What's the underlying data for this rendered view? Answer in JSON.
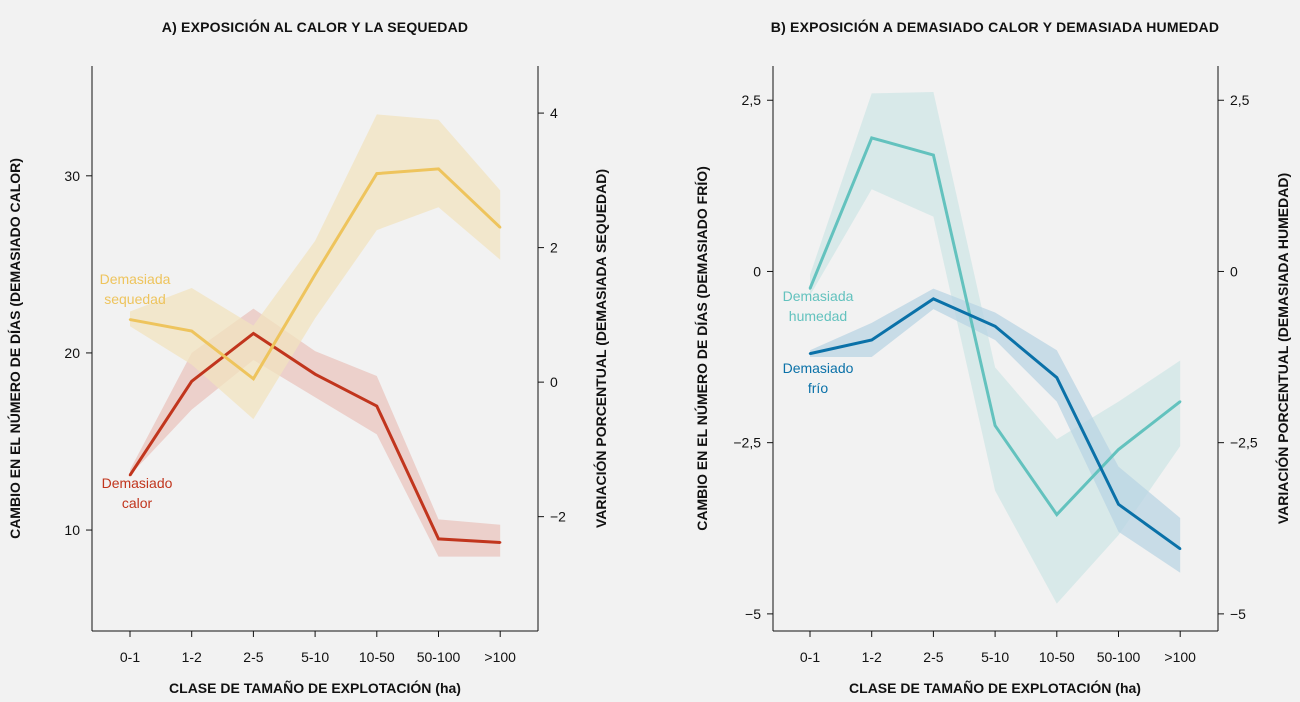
{
  "chart_data": [
    {
      "type": "line",
      "title": "A) EXPOSICIÓN AL CALOR Y LA SEQUEDAD",
      "xlabel": "CLASE DE TAMAÑO DE EXPLOTACIÓN (ha)",
      "ylabel": "CAMBIO EN EL NÚMERO DE DÍAS (DEMASIADO CALOR)",
      "ylabel_right": "VARIACIÓN PORCENTUAL (DEMASIADA SEQUEDAD)",
      "categories": [
        "0-1",
        "1-2",
        "2-5",
        "5-10",
        "10-50",
        "50-100",
        ">100"
      ],
      "ylim": [
        4.3,
        36.2
      ],
      "yticks": [
        10,
        20,
        30
      ],
      "ytick_labels": [
        "10",
        "20",
        "30"
      ],
      "ylim_right": [
        -3.7,
        4.7
      ],
      "yticks_right": [
        -2,
        0,
        2,
        4
      ],
      "ytick_labels_right": [
        "−2",
        "0",
        "2",
        "4"
      ],
      "grid": false,
      "series": [
        {
          "name": "Demasiado calor",
          "axis": "left",
          "color": "#c1351d",
          "band_color": "#e9c4bd",
          "values": [
            13.1,
            18.4,
            21.1,
            18.8,
            17.0,
            9.5,
            9.3
          ],
          "lower": [
            13.1,
            16.8,
            19.6,
            17.5,
            15.4,
            8.5,
            8.5
          ],
          "upper": [
            13.4,
            20.0,
            22.5,
            20.1,
            18.7,
            10.6,
            10.3
          ],
          "label_lines": [
            "Demasiado",
            "calor"
          ]
        },
        {
          "name": "Demasiada sequedad",
          "axis": "right",
          "color": "#eec45d",
          "band_color": "#f1e3bf",
          "values": [
            0.93,
            0.76,
            0.05,
            1.6,
            3.1,
            3.17,
            2.3
          ],
          "lower": [
            0.83,
            0.26,
            -0.55,
            0.95,
            2.26,
            2.6,
            1.82
          ],
          "upper": [
            1.05,
            1.4,
            0.84,
            2.1,
            3.98,
            3.9,
            2.85
          ],
          "label_lines": [
            "Demasiada",
            "sequedad"
          ]
        }
      ]
    },
    {
      "type": "line",
      "title": "B) EXPOSICIÓN A DEMASIADO CALOR Y DEMASIADA HUMEDAD",
      "xlabel": "CLASE DE TAMAÑO DE EXPLOTACIÓN (ha)",
      "ylabel": "CAMBIO EN EL NÚMERO DE DÍAS (DEMASIADO FRÍO)",
      "ylabel_right": "VARIACIÓN PORCENTUAL (DEMASIADA HUMEDAD)",
      "categories": [
        "0-1",
        "1-2",
        "2-5",
        "5-10",
        "10-50",
        "50-100",
        ">100"
      ],
      "ylim": [
        -5.25,
        3.0
      ],
      "yticks": [
        -5,
        -2.5,
        0,
        2.5
      ],
      "ytick_labels": [
        "−5",
        "−2,5",
        "0",
        "2,5"
      ],
      "ylim_right": [
        -5.25,
        3.0
      ],
      "yticks_right": [
        -5,
        -2.5,
        0,
        2.5
      ],
      "ytick_labels_right": [
        "−5",
        "−2,5",
        "0",
        "2,5"
      ],
      "grid": false,
      "series": [
        {
          "name": "Demasiada humedad",
          "axis": "right",
          "color": "#63c2be",
          "band_color": "#cfe6e5",
          "values": [
            -0.25,
            1.95,
            1.7,
            -2.25,
            -3.55,
            -2.6,
            -1.9
          ],
          "lower": [
            -0.35,
            1.2,
            0.8,
            -3.2,
            -4.85,
            -3.85,
            -2.55
          ],
          "upper": [
            -0.05,
            2.6,
            2.62,
            -1.4,
            -2.45,
            -1.9,
            -1.3
          ],
          "label_lines": [
            "Demasiada",
            "humedad"
          ]
        },
        {
          "name": "Demasiado frío",
          "axis": "left",
          "color": "#0a71a8",
          "band_color": "#b9d4e3",
          "values": [
            -1.2,
            -1.0,
            -0.4,
            -0.8,
            -1.55,
            -3.4,
            -4.05
          ],
          "lower": [
            -1.25,
            -1.25,
            -0.55,
            -1.0,
            -1.9,
            -3.8,
            -4.4
          ],
          "upper": [
            -1.15,
            -0.75,
            -0.25,
            -0.6,
            -1.15,
            -2.85,
            -3.6
          ],
          "label_lines": [
            "Demasiado",
            "frío"
          ]
        }
      ]
    }
  ]
}
